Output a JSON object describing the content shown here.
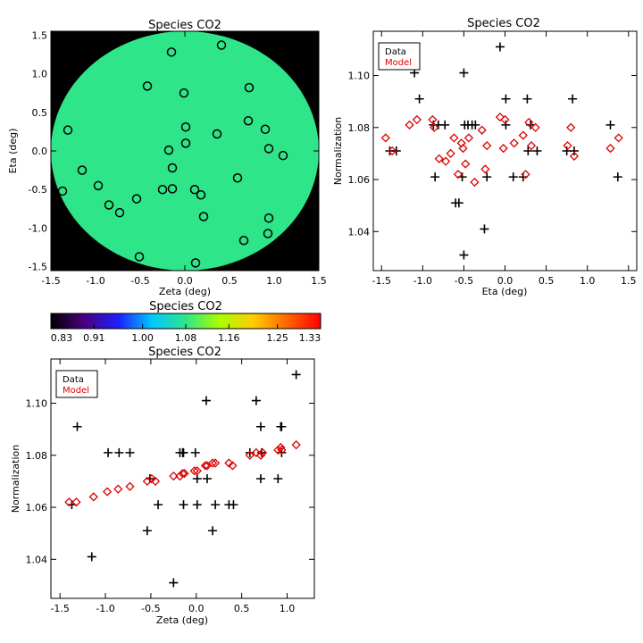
{
  "chart_data": [
    {
      "id": "map",
      "type": "scatter",
      "title": "Species CO2",
      "xlabel": "Zeta (deg)",
      "ylabel": "Eta (deg)",
      "xlim": [
        -1.5,
        1.5
      ],
      "ylim": [
        -1.55,
        1.55
      ],
      "xticks": [
        "-1.5",
        "-1.0",
        "-0.5",
        "0.0",
        "0.5",
        "1.0",
        "1.5"
      ],
      "yticks": [
        "-1.5",
        "-1.0",
        "-0.5",
        "0.0",
        "0.5",
        "1.0",
        "1.5"
      ],
      "background_color": "#000000",
      "field_value": 1.08,
      "field_color": "#2ee58a",
      "marker": "open circle",
      "points": [
        {
          "x": -0.15,
          "y": 1.28
        },
        {
          "x": 0.41,
          "y": 1.37
        },
        {
          "x": -0.42,
          "y": 0.84
        },
        {
          "x": 0.72,
          "y": 0.82
        },
        {
          "x": -0.01,
          "y": 0.75
        },
        {
          "x": 0.71,
          "y": 0.39
        },
        {
          "x": -1.31,
          "y": 0.27
        },
        {
          "x": 0.01,
          "y": 0.31
        },
        {
          "x": 0.9,
          "y": 0.28
        },
        {
          "x": 0.36,
          "y": 0.22
        },
        {
          "x": 0.01,
          "y": 0.1
        },
        {
          "x": -0.18,
          "y": 0.01
        },
        {
          "x": 0.94,
          "y": 0.03
        },
        {
          "x": 1.1,
          "y": -0.06
        },
        {
          "x": -1.15,
          "y": -0.25
        },
        {
          "x": -0.14,
          "y": -0.22
        },
        {
          "x": 0.59,
          "y": -0.35
        },
        {
          "x": -0.97,
          "y": -0.45
        },
        {
          "x": -1.37,
          "y": -0.52
        },
        {
          "x": -0.25,
          "y": -0.5
        },
        {
          "x": -0.14,
          "y": -0.49
        },
        {
          "x": 0.11,
          "y": -0.5
        },
        {
          "x": 0.18,
          "y": -0.57
        },
        {
          "x": -0.54,
          "y": -0.62
        },
        {
          "x": -0.85,
          "y": -0.7
        },
        {
          "x": -0.73,
          "y": -0.8
        },
        {
          "x": 0.21,
          "y": -0.85
        },
        {
          "x": 0.94,
          "y": -0.87
        },
        {
          "x": 0.93,
          "y": -1.07
        },
        {
          "x": 0.66,
          "y": -1.16
        },
        {
          "x": -0.51,
          "y": -1.37
        },
        {
          "x": 0.12,
          "y": -1.45
        }
      ]
    },
    {
      "id": "colorbar",
      "type": "heatmap",
      "title": "Species CO2",
      "ticks": [
        "0.83",
        "0.91",
        "1.00",
        "1.08",
        "1.16",
        "1.25",
        "1.33"
      ],
      "range": [
        0.83,
        1.33
      ],
      "colormap": [
        "#000000",
        "#4b0082",
        "#1e1eff",
        "#00c8ff",
        "#2ee58a",
        "#aaff00",
        "#ffcc00",
        "#ff6600",
        "#ff0000"
      ]
    },
    {
      "id": "eta-norm",
      "type": "scatter",
      "title": "Species CO2",
      "xlabel": "Eta (deg)",
      "ylabel": "Normalization",
      "xlim": [
        -1.6,
        1.6
      ],
      "ylim": [
        1.025,
        1.117
      ],
      "xticks": [
        "-1.5",
        "-1.0",
        "-0.5",
        "0.0",
        "0.5",
        "1.0",
        "1.5"
      ],
      "yticks": [
        "1.04",
        "1.06",
        "1.08",
        "1.10"
      ],
      "legend": {
        "position": "top-left",
        "entries": [
          {
            "label": "Data",
            "color": "#000000"
          },
          {
            "label": "Model",
            "color": "#dd0000"
          }
        ]
      },
      "series": [
        {
          "name": "Data",
          "marker": "plus",
          "color": "#000000",
          "points": [
            {
              "x": -1.4,
              "y": 1.071
            },
            {
              "x": -1.32,
              "y": 1.071
            },
            {
              "x": -1.1,
              "y": 1.101
            },
            {
              "x": -1.04,
              "y": 1.091
            },
            {
              "x": -0.87,
              "y": 1.081
            },
            {
              "x": -0.81,
              "y": 1.081
            },
            {
              "x": -0.73,
              "y": 1.081
            },
            {
              "x": -0.85,
              "y": 1.061
            },
            {
              "x": -0.6,
              "y": 1.051
            },
            {
              "x": -0.56,
              "y": 1.051
            },
            {
              "x": -0.52,
              "y": 1.061
            },
            {
              "x": -0.5,
              "y": 1.101
            },
            {
              "x": -0.49,
              "y": 1.081
            },
            {
              "x": -0.45,
              "y": 1.081
            },
            {
              "x": -0.4,
              "y": 1.081
            },
            {
              "x": -0.36,
              "y": 1.081
            },
            {
              "x": -0.5,
              "y": 1.031
            },
            {
              "x": -0.25,
              "y": 1.041
            },
            {
              "x": -0.22,
              "y": 1.061
            },
            {
              "x": -0.06,
              "y": 1.111
            },
            {
              "x": 0.01,
              "y": 1.091
            },
            {
              "x": 0.01,
              "y": 1.081
            },
            {
              "x": 0.1,
              "y": 1.061
            },
            {
              "x": 0.22,
              "y": 1.061
            },
            {
              "x": 0.27,
              "y": 1.091
            },
            {
              "x": 0.31,
              "y": 1.081
            },
            {
              "x": 0.39,
              "y": 1.071
            },
            {
              "x": 0.28,
              "y": 1.071
            },
            {
              "x": 0.75,
              "y": 1.071
            },
            {
              "x": 0.82,
              "y": 1.091
            },
            {
              "x": 0.84,
              "y": 1.071
            },
            {
              "x": 1.28,
              "y": 1.081
            },
            {
              "x": 1.37,
              "y": 1.061
            }
          ]
        },
        {
          "name": "Model",
          "marker": "open diamond",
          "color": "#dd0000",
          "points": [
            {
              "x": -1.45,
              "y": 1.076
            },
            {
              "x": -1.37,
              "y": 1.071
            },
            {
              "x": -1.16,
              "y": 1.081
            },
            {
              "x": -1.07,
              "y": 1.083
            },
            {
              "x": -0.88,
              "y": 1.083
            },
            {
              "x": -0.86,
              "y": 1.08
            },
            {
              "x": -0.8,
              "y": 1.068
            },
            {
              "x": -0.72,
              "y": 1.067
            },
            {
              "x": -0.66,
              "y": 1.07
            },
            {
              "x": -0.62,
              "y": 1.076
            },
            {
              "x": -0.57,
              "y": 1.062
            },
            {
              "x": -0.53,
              "y": 1.074
            },
            {
              "x": -0.51,
              "y": 1.072
            },
            {
              "x": -0.48,
              "y": 1.066
            },
            {
              "x": -0.44,
              "y": 1.076
            },
            {
              "x": -0.37,
              "y": 1.059
            },
            {
              "x": -0.28,
              "y": 1.079
            },
            {
              "x": -0.22,
              "y": 1.073
            },
            {
              "x": -0.24,
              "y": 1.064
            },
            {
              "x": -0.06,
              "y": 1.084
            },
            {
              "x": -0.02,
              "y": 1.072
            },
            {
              "x": 0.0,
              "y": 1.083
            },
            {
              "x": 0.11,
              "y": 1.074
            },
            {
              "x": 0.22,
              "y": 1.077
            },
            {
              "x": 0.25,
              "y": 1.062
            },
            {
              "x": 0.29,
              "y": 1.082
            },
            {
              "x": 0.32,
              "y": 1.073
            },
            {
              "x": 0.37,
              "y": 1.08
            },
            {
              "x": 0.76,
              "y": 1.073
            },
            {
              "x": 0.8,
              "y": 1.08
            },
            {
              "x": 0.84,
              "y": 1.069
            },
            {
              "x": 1.28,
              "y": 1.072
            },
            {
              "x": 1.38,
              "y": 1.076
            }
          ]
        }
      ]
    },
    {
      "id": "zeta-norm",
      "type": "scatter",
      "title": "Species CO2",
      "xlabel": "Zeta (deg)",
      "ylabel": "Normalization",
      "xlim": [
        -1.6,
        1.3
      ],
      "ylim": [
        1.025,
        1.117
      ],
      "xticks": [
        "-1.5",
        "-1.0",
        "-0.5",
        "0.0",
        "0.5",
        "1.0"
      ],
      "yticks": [
        "1.04",
        "1.06",
        "1.08",
        "1.10"
      ],
      "legend": {
        "position": "top-left",
        "entries": [
          {
            "label": "Data",
            "color": "#000000"
          },
          {
            "label": "Model",
            "color": "#dd0000"
          }
        ]
      },
      "series": [
        {
          "name": "Data",
          "marker": "plus",
          "color": "#000000",
          "points": [
            {
              "x": -1.37,
              "y": 1.061
            },
            {
              "x": -1.31,
              "y": 1.091
            },
            {
              "x": -1.15,
              "y": 1.041
            },
            {
              "x": -0.97,
              "y": 1.081
            },
            {
              "x": -0.85,
              "y": 1.081
            },
            {
              "x": -0.73,
              "y": 1.081
            },
            {
              "x": -0.54,
              "y": 1.051
            },
            {
              "x": -0.51,
              "y": 1.071
            },
            {
              "x": -0.42,
              "y": 1.061
            },
            {
              "x": -0.25,
              "y": 1.031
            },
            {
              "x": -0.18,
              "y": 1.081
            },
            {
              "x": -0.15,
              "y": 1.081
            },
            {
              "x": -0.14,
              "y": 1.081
            },
            {
              "x": -0.14,
              "y": 1.061
            },
            {
              "x": -0.01,
              "y": 1.081
            },
            {
              "x": 0.01,
              "y": 1.071
            },
            {
              "x": 0.01,
              "y": 1.061
            },
            {
              "x": 0.11,
              "y": 1.101
            },
            {
              "x": 0.12,
              "y": 1.071
            },
            {
              "x": 0.18,
              "y": 1.051
            },
            {
              "x": 0.21,
              "y": 1.061
            },
            {
              "x": 0.36,
              "y": 1.061
            },
            {
              "x": 0.41,
              "y": 1.061
            },
            {
              "x": 0.59,
              "y": 1.081
            },
            {
              "x": 0.66,
              "y": 1.101
            },
            {
              "x": 0.71,
              "y": 1.091
            },
            {
              "x": 0.72,
              "y": 1.081
            },
            {
              "x": 0.71,
              "y": 1.071
            },
            {
              "x": 0.9,
              "y": 1.071
            },
            {
              "x": 0.93,
              "y": 1.091
            },
            {
              "x": 0.94,
              "y": 1.091
            },
            {
              "x": 0.94,
              "y": 1.081
            },
            {
              "x": 1.1,
              "y": 1.111
            }
          ]
        },
        {
          "name": "Model",
          "marker": "open diamond",
          "color": "#dd0000",
          "points": [
            {
              "x": -1.4,
              "y": 1.062
            },
            {
              "x": -1.32,
              "y": 1.062
            },
            {
              "x": -1.13,
              "y": 1.064
            },
            {
              "x": -0.98,
              "y": 1.066
            },
            {
              "x": -0.86,
              "y": 1.067
            },
            {
              "x": -0.73,
              "y": 1.068
            },
            {
              "x": -0.54,
              "y": 1.07
            },
            {
              "x": -0.49,
              "y": 1.071
            },
            {
              "x": -0.45,
              "y": 1.07
            },
            {
              "x": -0.25,
              "y": 1.072
            },
            {
              "x": -0.18,
              "y": 1.072
            },
            {
              "x": -0.15,
              "y": 1.073
            },
            {
              "x": -0.13,
              "y": 1.073
            },
            {
              "x": -0.02,
              "y": 1.074
            },
            {
              "x": 0.01,
              "y": 1.074
            },
            {
              "x": 0.1,
              "y": 1.076
            },
            {
              "x": 0.12,
              "y": 1.076
            },
            {
              "x": 0.18,
              "y": 1.077
            },
            {
              "x": 0.21,
              "y": 1.077
            },
            {
              "x": 0.36,
              "y": 1.077
            },
            {
              "x": 0.4,
              "y": 1.076
            },
            {
              "x": 0.59,
              "y": 1.08
            },
            {
              "x": 0.66,
              "y": 1.081
            },
            {
              "x": 0.71,
              "y": 1.08
            },
            {
              "x": 0.73,
              "y": 1.081
            },
            {
              "x": 0.9,
              "y": 1.082
            },
            {
              "x": 0.93,
              "y": 1.083
            },
            {
              "x": 0.94,
              "y": 1.082
            },
            {
              "x": 1.1,
              "y": 1.084
            }
          ]
        }
      ]
    }
  ]
}
